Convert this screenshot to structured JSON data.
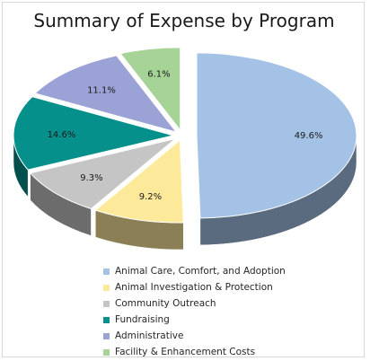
{
  "chart_data": {
    "type": "pie",
    "title": "Summary of Expense by Program",
    "slices": [
      {
        "label": "Animal Care, Comfort, and Adoption",
        "value": 49.6,
        "value_label": "49.6%",
        "color": "#a4c2e6"
      },
      {
        "label": "Animal Investigation & Protection",
        "value": 9.2,
        "value_label": "9.2%",
        "color": "#fde99a"
      },
      {
        "label": "Community Outreach",
        "value": 9.3,
        "value_label": "9.3%",
        "color": "#c5c5c5"
      },
      {
        "label": "Fundraising",
        "value": 14.6,
        "value_label": "14.6%",
        "color": "#06908c"
      },
      {
        "label": "Administrative",
        "value": 11.1,
        "value_label": "11.1%",
        "color": "#9aa2d6"
      },
      {
        "label": "Facility & Enhancement Costs",
        "value": 6.1,
        "value_label": "6.1%",
        "color": "#a6d396"
      }
    ],
    "legend_position": "bottom",
    "style": "3d-exploded"
  }
}
